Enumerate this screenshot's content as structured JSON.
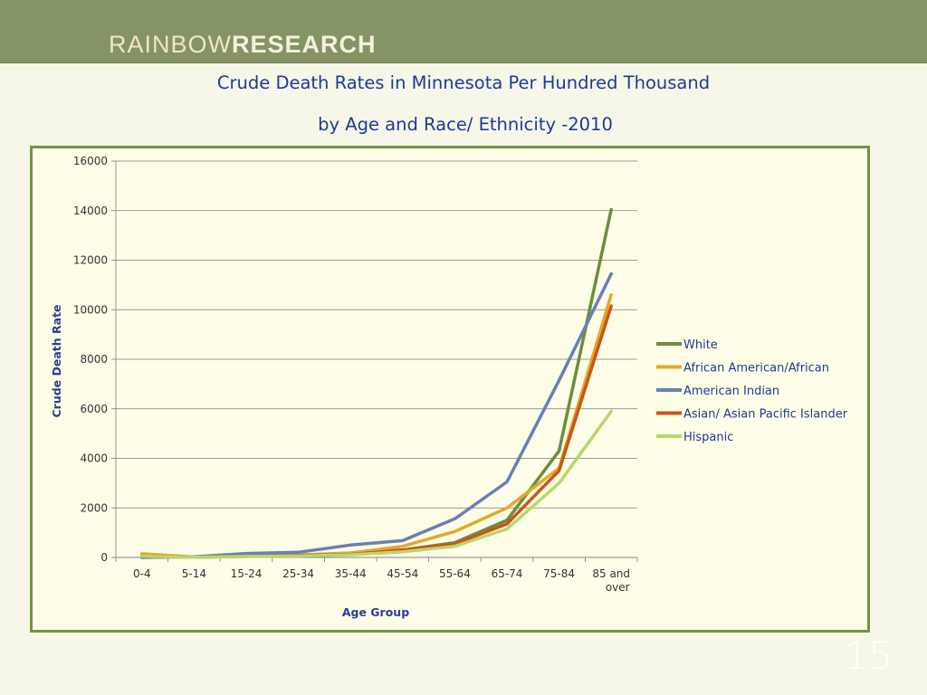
{
  "header": {
    "logo_part1": "RAINBOW",
    "logo_part2": "RESEARCH"
  },
  "slide": {
    "title_line1": "Crude Death Rates in Minnesota Per Hundred Thousand",
    "title_line2": "by Age and Race/ Ethnicity -2010",
    "page_number": "15"
  },
  "chart_data": {
    "type": "line",
    "title": "Crude Death Rates in Minnesota Per Hundred Thousand by Age and Race/ Ethnicity -2010",
    "xlabel": "Age Group",
    "ylabel": "Crude Death Rate",
    "categories": [
      "0-4",
      "5-14",
      "15-24",
      "25-34",
      "35-44",
      "45-54",
      "55-64",
      "65-74",
      "75-84",
      "85 and over"
    ],
    "ylim": [
      0,
      16000
    ],
    "yticks": [
      0,
      2000,
      4000,
      6000,
      8000,
      10000,
      12000,
      14000,
      16000
    ],
    "grid": true,
    "legend_position": "right",
    "series": [
      {
        "name": "White",
        "color": "#6b8e3c",
        "values": [
          100,
          10,
          60,
          90,
          170,
          300,
          600,
          1500,
          4300,
          14050
        ]
      },
      {
        "name": "African American/African",
        "color": "#e3a92a",
        "values": [
          150,
          20,
          80,
          100,
          180,
          450,
          1050,
          2000,
          3600,
          10600
        ]
      },
      {
        "name": "American Indian",
        "color": "#6b7fb4",
        "values": [
          0,
          30,
          160,
          210,
          500,
          680,
          1560,
          3050,
          7150,
          11450
        ]
      },
      {
        "name": "Asian/ Asian Pacific Islander",
        "color": "#c9551a",
        "values": [
          50,
          10,
          40,
          80,
          120,
          300,
          550,
          1350,
          3500,
          10150
        ]
      },
      {
        "name": "Hispanic",
        "color": "#b9d66d",
        "values": [
          50,
          10,
          40,
          60,
          110,
          230,
          450,
          1150,
          3000,
          5900
        ]
      }
    ]
  }
}
